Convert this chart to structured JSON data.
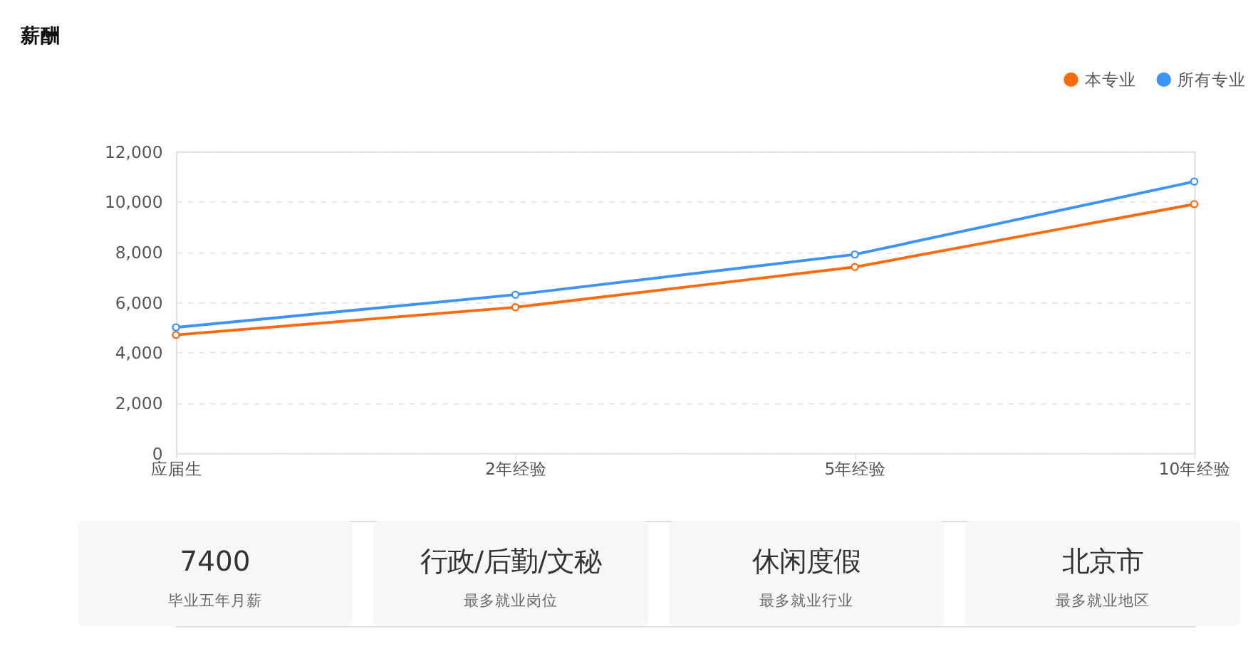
{
  "chart_data": [
    {
      "type": "line",
      "title": "薪酬",
      "categories": [
        "应届生",
        "2年经验",
        "5年经验",
        "10年经验"
      ],
      "series": [
        {
          "name": "本专业",
          "color": "#ff6a0d",
          "values": [
            4700,
            5800,
            7400,
            9900
          ]
        },
        {
          "name": "所有专业",
          "color": "#3d94f6",
          "values": [
            5000,
            6300,
            7900,
            10800
          ]
        }
      ],
      "ylim": [
        0,
        12000
      ],
      "yticks": [
        0,
        {
          "value": 2000,
          "label": "2,000"
        },
        {
          "value": 4000,
          "label": "4,000"
        },
        {
          "value": 6000,
          "label": "6,000"
        },
        {
          "value": 8000,
          "label": "8,000"
        },
        {
          "value": 10000,
          "label": "10,000"
        },
        {
          "value": 12000,
          "label": "12,000"
        }
      ],
      "grid": "y",
      "legend": "top right",
      "marker": "circle",
      "line_style": "solid"
    },
    {
      "type": "other",
      "annotations": [
        "7400",
        "毕业五年月薪",
        "行政/后勤/文秘",
        "最多就业岗位",
        "休闲度假",
        "最多就业行业",
        "北京市",
        "最多就业地区"
      ]
    }
  ]
}
